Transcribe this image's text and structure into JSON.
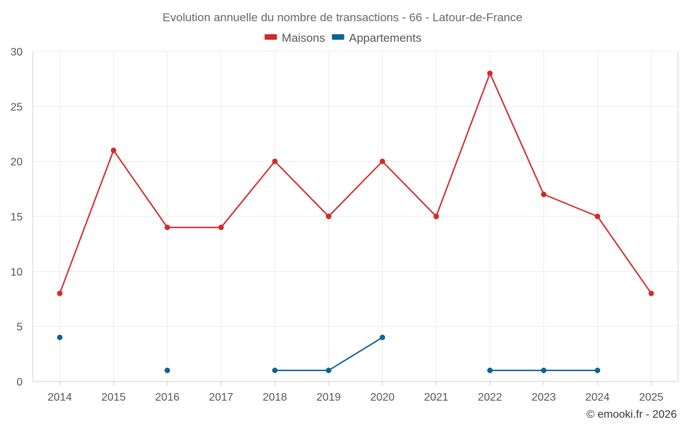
{
  "chart_data": {
    "type": "line",
    "title": "Evolution annuelle du nombre de transactions - 66 - Latour-de-France",
    "categories": [
      "2014",
      "2015",
      "2016",
      "2017",
      "2018",
      "2019",
      "2020",
      "2021",
      "2022",
      "2023",
      "2024",
      "2025"
    ],
    "ylim": [
      0,
      30
    ],
    "yticks": [
      0,
      5,
      10,
      15,
      20,
      25,
      30
    ],
    "grid": true,
    "legend_position": "top-center",
    "xlabel": "",
    "ylabel": "",
    "series": [
      {
        "name": "Maisons",
        "color": "#d32a2a",
        "values": [
          8,
          21,
          14,
          14,
          20,
          15,
          20,
          15,
          28,
          17,
          15,
          8
        ]
      },
      {
        "name": "Appartements",
        "color": "#0a6496",
        "values": [
          4,
          null,
          1,
          null,
          1,
          1,
          4,
          null,
          1,
          1,
          1,
          null
        ]
      }
    ]
  },
  "credit": "© emooki.fr - 2026"
}
